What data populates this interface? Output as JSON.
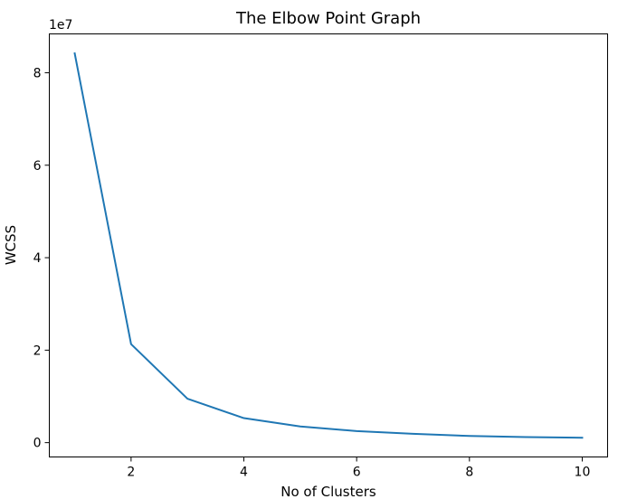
{
  "chart_data": {
    "type": "line",
    "title": "The Elbow Point Graph",
    "xlabel": "No of Clusters",
    "ylabel": "WCSS",
    "y_offset_label": "1e7",
    "x": [
      1,
      2,
      3,
      4,
      5,
      6,
      7,
      8,
      9,
      10
    ],
    "series": [
      {
        "values": [
          84200000,
          21300000,
          9500000,
          5300000,
          3500000,
          2500000,
          1900000,
          1450000,
          1200000,
          1050000
        ]
      }
    ],
    "xlim": [
      0.55,
      10.45
    ],
    "ylim": [
      -3100000,
      88400000
    ],
    "xticks": [
      2,
      4,
      6,
      8,
      10
    ],
    "xtick_labels": [
      "2",
      "4",
      "6",
      "8",
      "10"
    ],
    "yticks": [
      0,
      20000000,
      40000000,
      60000000,
      80000000
    ],
    "ytick_labels": [
      "0",
      "2",
      "4",
      "6",
      "8"
    ],
    "grid": false,
    "line_color": "#1f77b4"
  }
}
